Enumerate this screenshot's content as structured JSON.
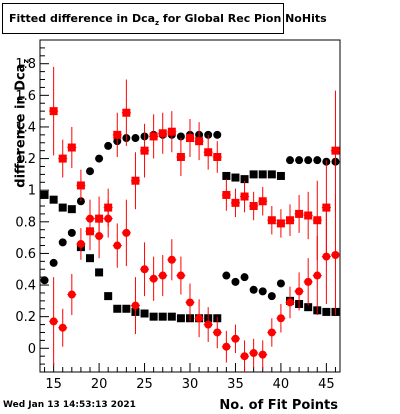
{
  "title": {
    "main": "Fitted difference in Dca",
    "sub": "z",
    "rest": " for Global Rec Pion NoHits"
  },
  "ylabel": {
    "main": "difference in Dca",
    "sub": "z"
  },
  "xlabel": "No. of Fit Points",
  "timestamp": "Wed Jan 13 14:53:13 2021",
  "colors": {
    "black_series": "#000000",
    "red_series": "#ff0000",
    "axis": "#000000"
  },
  "chart_data": {
    "type": "scatter",
    "title": "Fitted difference in Dca_z for Global Rec Pion NoHits",
    "xlabel": "No. of Fit Points",
    "ylabel": "difference in Dca_z",
    "xlim": [
      13.5,
      46.5
    ],
    "ylim": [
      -0.15,
      1.95
    ],
    "xticks": [
      15,
      20,
      25,
      30,
      35,
      40,
      45
    ],
    "yticks": [
      0,
      0.2,
      0.4,
      0.6,
      0.8,
      1,
      1.2,
      1.4,
      1.6,
      1.8
    ],
    "ytick_labels": [
      "0",
      "0.2",
      "0.4",
      "0.6",
      "0.8",
      "1",
      "1.2",
      "1.4",
      "1.6",
      "1.8"
    ],
    "grid": false,
    "series": [
      {
        "marker": "circle",
        "color": "black",
        "x": [
          14,
          15,
          16,
          17,
          18,
          19,
          20,
          21,
          22,
          23,
          24,
          25,
          26,
          27,
          28,
          29,
          30,
          31,
          32,
          33,
          34,
          35,
          36,
          37,
          38,
          39,
          40,
          41,
          42,
          43,
          44,
          45,
          46
        ],
        "y": [
          0.43,
          0.54,
          0.67,
          0.73,
          0.93,
          1.12,
          1.2,
          1.28,
          1.31,
          1.33,
          1.33,
          1.34,
          1.35,
          1.35,
          1.35,
          1.34,
          1.35,
          1.35,
          1.35,
          1.35,
          0.46,
          0.42,
          0.45,
          0.37,
          0.36,
          0.33,
          0.41,
          1.19,
          1.19,
          1.19,
          1.19,
          1.18,
          1.18
        ]
      },
      {
        "marker": "square",
        "color": "black",
        "x": [
          14,
          15,
          16,
          17,
          18,
          19,
          20,
          21,
          22,
          23,
          24,
          25,
          26,
          27,
          28,
          29,
          30,
          31,
          32,
          33,
          34,
          35,
          36,
          37,
          38,
          39,
          40,
          41,
          42,
          43,
          44,
          45,
          46
        ],
        "y": [
          0.97,
          0.94,
          0.89,
          0.88,
          0.64,
          0.57,
          0.48,
          0.33,
          0.25,
          0.25,
          0.23,
          0.22,
          0.2,
          0.2,
          0.2,
          0.19,
          0.19,
          0.19,
          0.19,
          0.19,
          1.09,
          1.08,
          1.07,
          1.1,
          1.1,
          1.1,
          1.09,
          0.3,
          0.28,
          0.26,
          0.24,
          0.23,
          0.23
        ]
      },
      {
        "marker": "square",
        "color": "red",
        "x": [
          15,
          16,
          17,
          18,
          19,
          20,
          21,
          22,
          23,
          24,
          25,
          26,
          27,
          28,
          29,
          30,
          31,
          32,
          33,
          34,
          35,
          36,
          37,
          38,
          39,
          40,
          41,
          42,
          43,
          44,
          45,
          46
        ],
        "y": [
          1.5,
          1.2,
          1.27,
          1.03,
          0.74,
          0.82,
          0.89,
          1.35,
          1.49,
          1.06,
          1.25,
          1.34,
          1.36,
          1.37,
          1.21,
          1.33,
          1.31,
          1.24,
          1.21,
          0.97,
          0.92,
          0.96,
          0.9,
          0.93,
          0.81,
          0.79,
          0.81,
          0.85,
          0.84,
          0.81,
          0.89,
          1.25
        ]
      },
      {
        "marker": "circle",
        "color": "red",
        "x": [
          15,
          16,
          17,
          18,
          19,
          20,
          21,
          22,
          23,
          24,
          25,
          26,
          27,
          28,
          29,
          30,
          31,
          32,
          33,
          34,
          35,
          36,
          37,
          38,
          39,
          40,
          41,
          42,
          43,
          44,
          45,
          46
        ],
        "y": [
          0.17,
          0.13,
          0.34,
          0.66,
          0.82,
          0.71,
          0.82,
          0.65,
          0.73,
          0.27,
          0.5,
          0.44,
          0.46,
          0.56,
          0.46,
          0.29,
          0.19,
          0.15,
          0.1,
          0.01,
          0.06,
          -0.05,
          -0.03,
          -0.04,
          0.1,
          0.19,
          0.29,
          0.36,
          0.42,
          0.46,
          0.58,
          0.59
        ]
      }
    ]
  }
}
